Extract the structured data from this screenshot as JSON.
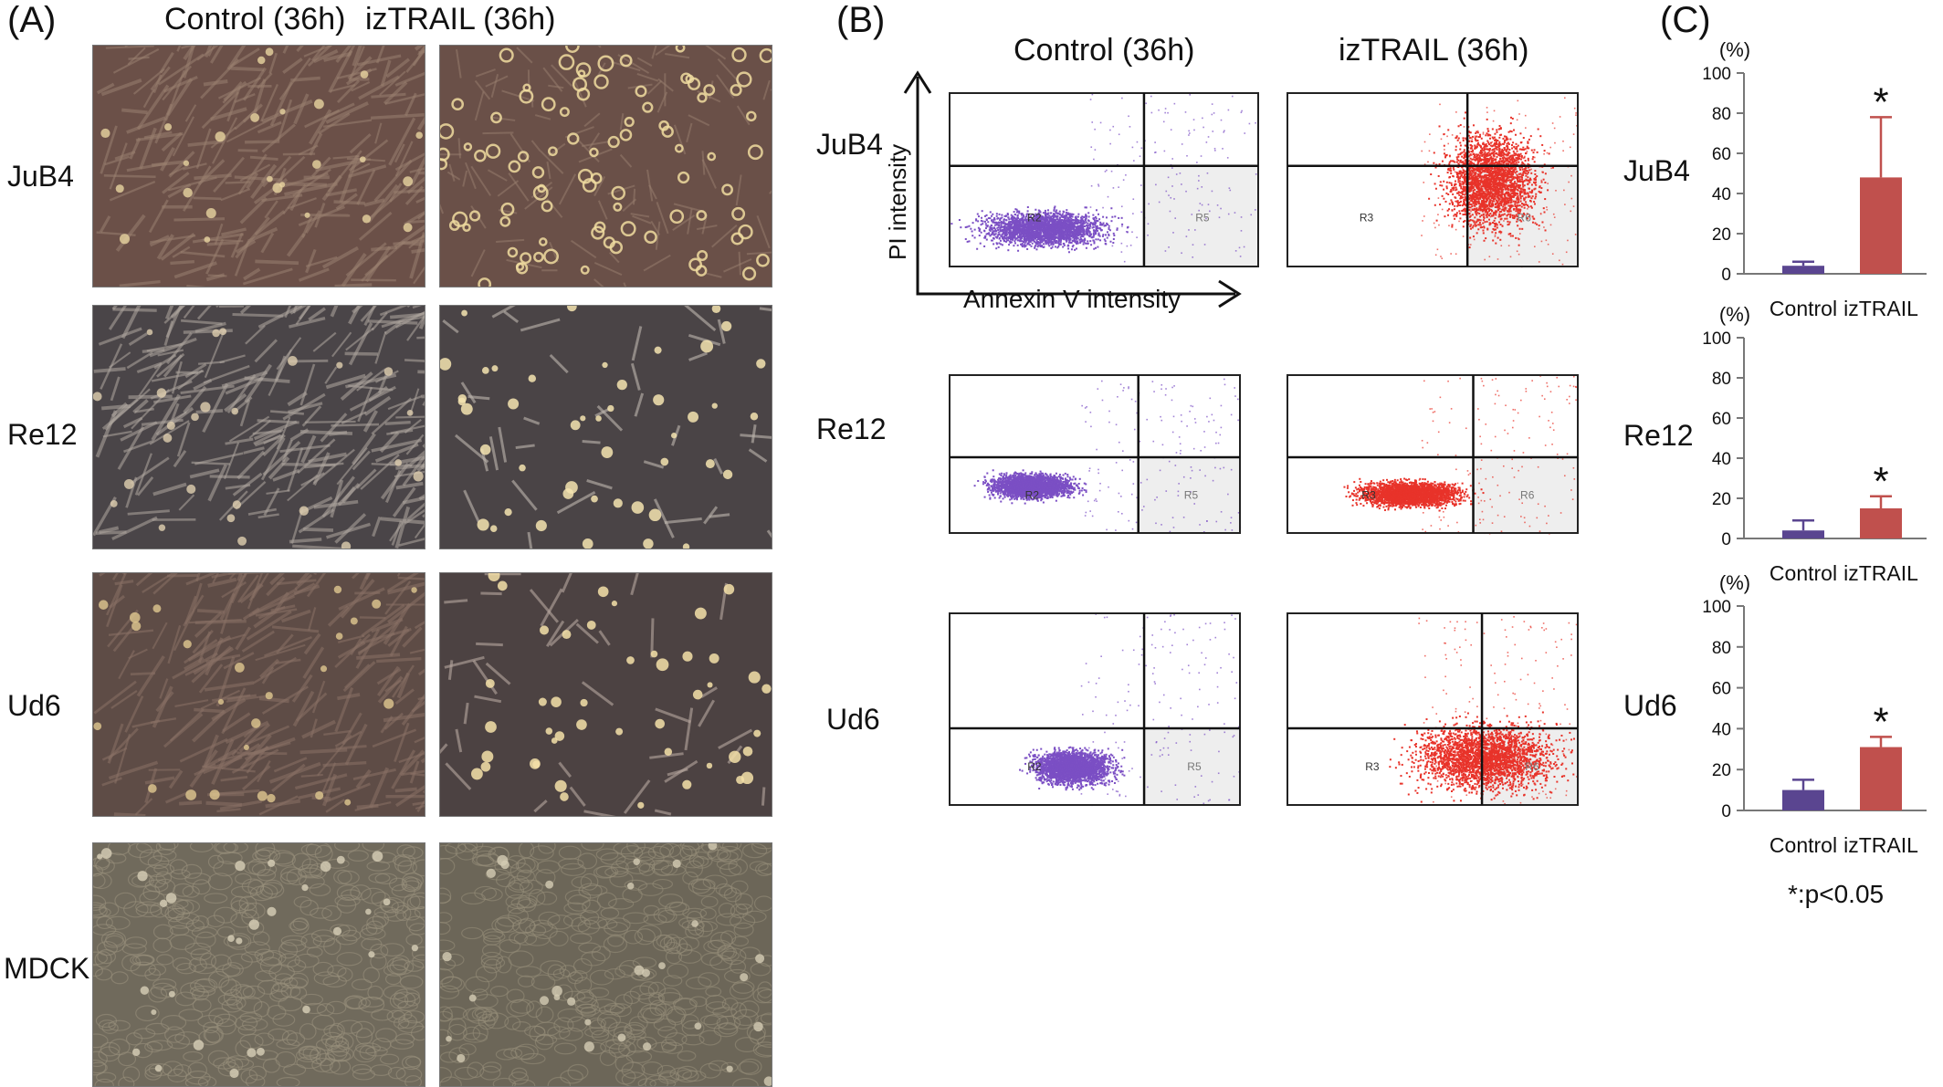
{
  "panels": {
    "A": "(A)",
    "B": "(B)",
    "C": "(C)"
  },
  "panel_a": {
    "columns": [
      "Control (36h)",
      "izTRAIL (36h)"
    ],
    "rows": [
      "JuB4",
      "Re12",
      "Ud6",
      "MDCK"
    ]
  },
  "panel_b": {
    "columns": [
      "Control (36h)",
      "izTRAIL (36h)"
    ],
    "rows": [
      "JuB4",
      "Re12",
      "Ud6"
    ],
    "y_axis_label": "PI intensity",
    "x_axis_label": "Annexin V intensity",
    "gate_labels": {
      "control": [
        "R2",
        "R5"
      ],
      "iztrail": [
        "R3",
        "R6"
      ]
    },
    "colors": {
      "control": "#7b4fc4",
      "iztrail": "#e8332a",
      "gate_fill": "#eeeeee"
    }
  },
  "panel_c": {
    "percent_unit": "(%)",
    "footnote": "*:p<0.05",
    "colors": {
      "control": "#5a4590",
      "iztrail": "#c0504d"
    }
  },
  "chart_data": [
    {
      "type": "bar",
      "title": "JuB4",
      "categories": [
        "Control",
        "izTRAIL"
      ],
      "values": [
        4,
        48
      ],
      "errors": [
        2,
        30
      ],
      "significance": [
        "",
        "*"
      ],
      "ylabel": "(%)",
      "ylim": [
        0,
        100
      ],
      "yticks": [
        0,
        20,
        40,
        60,
        80,
        100
      ]
    },
    {
      "type": "bar",
      "title": "Re12",
      "categories": [
        "Control",
        "izTRAIL"
      ],
      "values": [
        4,
        15
      ],
      "errors": [
        5,
        6
      ],
      "significance": [
        "",
        "*"
      ],
      "ylabel": "(%)",
      "ylim": [
        0,
        100
      ],
      "yticks": [
        0,
        20,
        40,
        60,
        80,
        100
      ]
    },
    {
      "type": "bar",
      "title": "Ud6",
      "categories": [
        "Control",
        "izTRAIL"
      ],
      "values": [
        10,
        31
      ],
      "errors": [
        5,
        5
      ],
      "significance": [
        "",
        "*"
      ],
      "ylabel": "(%)",
      "ylim": [
        0,
        100
      ],
      "yticks": [
        0,
        20,
        40,
        60,
        80,
        100
      ]
    }
  ]
}
